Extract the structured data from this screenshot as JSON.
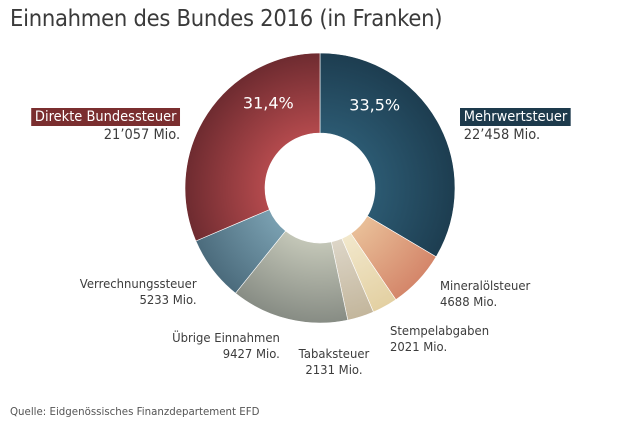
{
  "chart_data": {
    "type": "pie",
    "subtype": "donut",
    "title": "Einnahmen des Bundes 2016 (in Franken)",
    "unit": "Mio.",
    "start_angle": "top (12 o'clock), clockwise",
    "slices": [
      {
        "label": "Mehrwertsteuer",
        "value": 22458,
        "value_text": "22’458 Mio.",
        "percent_text": "33,5%",
        "color": "#1d3d50",
        "color_light": "#2c5a72",
        "highlight": true
      },
      {
        "label": "Mineralölsteuer",
        "value": 4688,
        "value_text": "4688 Mio.",
        "color": "#d4866a",
        "color_light": "#e9bf98"
      },
      {
        "label": "Stempelabgaben",
        "value": 2021,
        "value_text": "2021 Mio.",
        "color": "#e3d0a2",
        "color_light": "#f2e8cc"
      },
      {
        "label": "Tabaksteuer",
        "value": 2131,
        "value_text": "2131 Mio.",
        "color": "#c3b69c",
        "color_light": "#ddd6c8"
      },
      {
        "label": "Übrige Einnahmen",
        "value": 9427,
        "value_text": "9427 Mio.",
        "color": "#878c84",
        "color_light": "#c4c7b8"
      },
      {
        "label": "Verrechnungssteuer",
        "value": 5233,
        "value_text": "5233 Mio.",
        "color": "#4b6b7c",
        "color_light": "#7aa0b1"
      },
      {
        "label": "Direkte Bundessteuer",
        "value": 21057,
        "value_text": "21’057 Mio.",
        "percent_text": "31,4%",
        "color": "#6e2b30",
        "color_light": "#b44a4d",
        "highlight": true
      }
    ]
  },
  "labels": {
    "direkte": {
      "name": "Direkte Bundessteuer",
      "value": "21’057 Mio.",
      "tag_color": "#7a2e2f"
    },
    "mwst": {
      "name": "Mehrwertsteuer",
      "value": "22’458 Mio.",
      "tag_color": "#1d3a4c"
    },
    "mineral": {
      "name": "Mineralölsteuer",
      "value": "4688 Mio."
    },
    "stempel": {
      "name": "Stempelabgaben",
      "value": "2021 Mio."
    },
    "tabak": {
      "name": "Tabaksteuer",
      "value": "2131 Mio."
    },
    "uebrige": {
      "name": "Übrige Einnahmen",
      "value": "9427 Mio."
    },
    "verrechnung": {
      "name": "Verrechnungssteuer",
      "value": "5233 Mio."
    }
  },
  "source": "Quelle: Eidgenössisches Finanzdepartement EFD"
}
